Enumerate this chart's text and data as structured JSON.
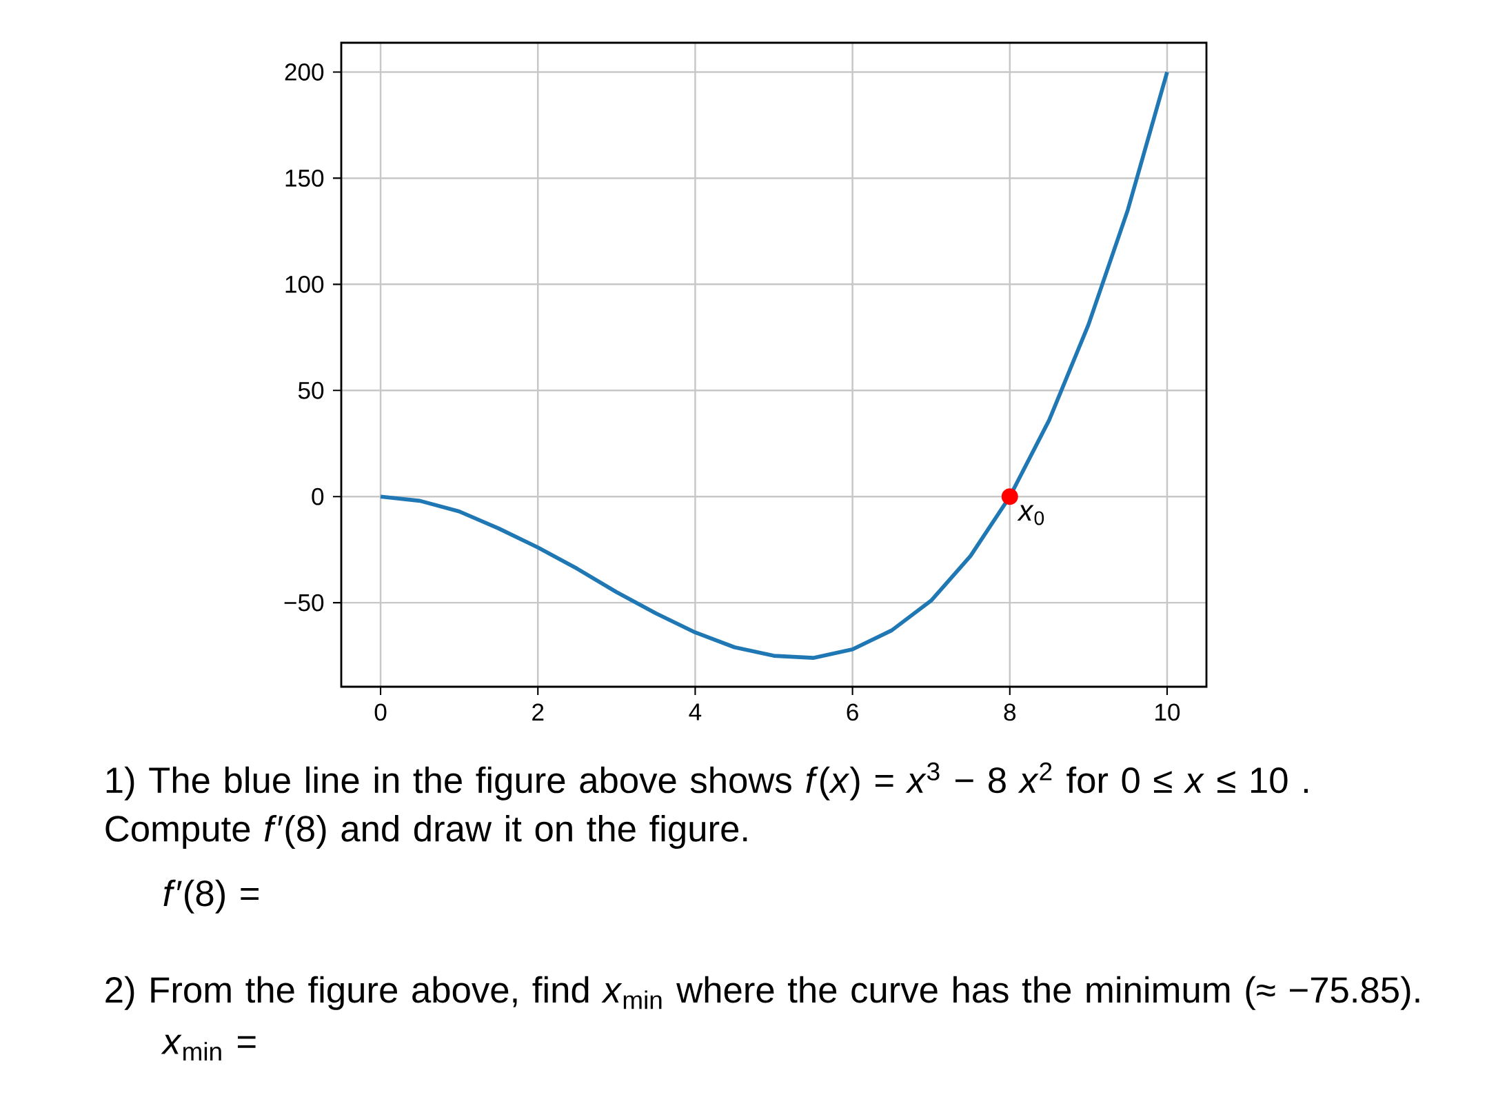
{
  "chart_data": {
    "type": "line",
    "x": [
      0,
      0.5,
      1,
      1.5,
      2,
      2.5,
      3,
      3.5,
      4,
      4.5,
      5,
      5.5,
      6,
      6.5,
      7,
      7.5,
      8,
      8.5,
      9,
      9.5,
      10
    ],
    "series": [
      {
        "color": "#1f77b4",
        "values": [
          0,
          -2,
          -7,
          -15,
          -24,
          -34,
          -45,
          -55,
          -64,
          -71,
          -75,
          -76,
          -72,
          -63,
          -49,
          -28,
          0,
          36,
          81,
          135,
          200
        ]
      },
      {
        "type": "scatter",
        "color": "#ff0000",
        "x": [
          8
        ],
        "values": [
          0
        ],
        "marker": "circle"
      }
    ],
    "xlim": [
      -0.5,
      10.5
    ],
    "ylim": [
      -89.6,
      213.8
    ],
    "xticks": [
      0,
      2,
      4,
      6,
      8,
      10
    ],
    "yticks": [
      {
        "value": -50,
        "label": "−50"
      },
      0,
      50,
      100,
      150,
      200
    ],
    "grid": true,
    "annotations": [
      {
        "text": "*x*$_{0}$",
        "x": 8,
        "y": 0
      },
      "1)  The blue line in the figure above shows *f*(*x*) = *x*$^{3}$ − 8 *x*$^{2}$ for 0 ≤ *x* ≤ 10 . Compute *f*′(8) and draw it on the figure.",
      "*f*′(8) =",
      "2)  From the figure above, find *x*$_{min}$ where the curve has the minimum (≈ −75.85).",
      "*x*$_{min}$ ="
    ]
  }
}
